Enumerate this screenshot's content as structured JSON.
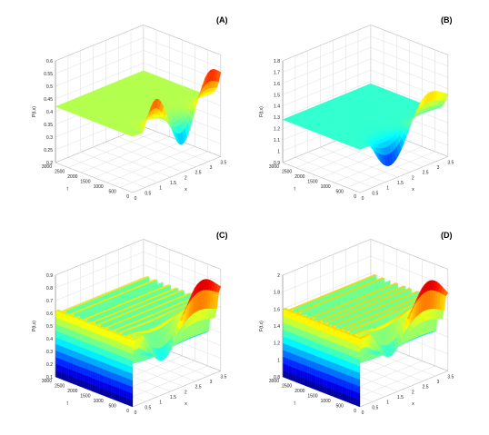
{
  "chart_data": [
    {
      "type": "surface",
      "panel_label": "(A)",
      "zlabel": "P(t,x)",
      "xlabel": "x",
      "ylabel": "t",
      "x_ticks": [
        "0",
        "0.5",
        "1",
        "1.5",
        "2",
        "2.5",
        "3",
        "3.5"
      ],
      "t_ticks": [
        "0",
        "500",
        "1000",
        "1500",
        "2000",
        "2500",
        "3000"
      ],
      "z_ticks": [
        "0.2",
        "0.25",
        "0.3",
        "0.35",
        "0.4",
        "0.45",
        "0.5",
        "0.55",
        "0.6"
      ],
      "xlim": [
        0,
        3.5
      ],
      "tlim": [
        0,
        3000
      ],
      "zlim": [
        0.2,
        0.6
      ],
      "surface": {
        "kind": "flat",
        "plateau": 0.42,
        "edge_amp": 0.11,
        "edge_cycles": 1.5,
        "edge_phase": 0,
        "edge_tail": 0.06,
        "edge_end": 0.56
      },
      "colormap": "jet"
    },
    {
      "type": "surface",
      "panel_label": "(B)",
      "zlabel": "F(t,x)",
      "xlabel": "x",
      "ylabel": "t",
      "x_ticks": [
        "0",
        "0.5",
        "1",
        "1.5",
        "2",
        "2.5",
        "3",
        "3.5"
      ],
      "t_ticks": [
        "0",
        "500",
        "1000",
        "1500",
        "2000",
        "2500",
        "3000"
      ],
      "z_ticks": [
        "0.9",
        "1",
        "1.1",
        "1.2",
        "1.3",
        "1.4",
        "1.5",
        "1.6",
        "1.7",
        "1.8"
      ],
      "xlim": [
        0,
        3.5
      ],
      "tlim": [
        0,
        3000
      ],
      "zlim": [
        0.9,
        1.8
      ],
      "surface": {
        "kind": "flat",
        "plateau": 1.28,
        "edge_amp": 0.25,
        "edge_cycles": 1,
        "edge_phase": 0.5,
        "edge_tail": 0.18,
        "edge_end": 1.5
      },
      "colormap": "jet"
    },
    {
      "type": "surface",
      "panel_label": "(C)",
      "zlabel": "P(t,x)",
      "xlabel": "x",
      "ylabel": "t",
      "x_ticks": [
        "0",
        "0.5",
        "1",
        "1.5",
        "2",
        "2.5",
        "3",
        "3.5"
      ],
      "t_ticks": [
        "0",
        "500",
        "1000",
        "1500",
        "2000",
        "2500",
        "3000"
      ],
      "z_ticks": [
        "0.1",
        "0.2",
        "0.3",
        "0.4",
        "0.5",
        "0.6",
        "0.7",
        "0.8",
        "0.9"
      ],
      "xlim": [
        0,
        3.5
      ],
      "tlim": [
        0,
        3000
      ],
      "zlim": [
        0.1,
        0.9
      ],
      "surface": {
        "kind": "ridged",
        "plateau": 0.62,
        "edge_amp": 0.25,
        "edge_cycles": 1,
        "edge_phase": 0.5,
        "edge_tail": 0.2,
        "edge_end": 0.8,
        "ridges": 11
      },
      "colormap": "jet"
    },
    {
      "type": "surface",
      "panel_label": "(D)",
      "zlabel": "F(t,x)",
      "xlabel": "x",
      "ylabel": "t",
      "x_ticks": [
        "0",
        "0.5",
        "1",
        "1.5",
        "2",
        "2.5",
        "3",
        "3.5"
      ],
      "t_ticks": [
        "0",
        "500",
        "1000",
        "1500",
        "2000",
        "2500",
        "3000"
      ],
      "z_ticks": [
        "0.8",
        "1",
        "1.2",
        "1.4",
        "1.6",
        "1.8",
        "2"
      ],
      "xlim": [
        0,
        3.5
      ],
      "tlim": [
        0,
        3000
      ],
      "zlim": [
        0.8,
        2.0
      ],
      "surface": {
        "kind": "ridged",
        "plateau": 1.6,
        "edge_amp": 0.35,
        "edge_cycles": 1,
        "edge_phase": 0.5,
        "edge_tail": 0.3,
        "edge_end": 1.75,
        "ridges": 11
      },
      "colormap": "jet"
    }
  ]
}
